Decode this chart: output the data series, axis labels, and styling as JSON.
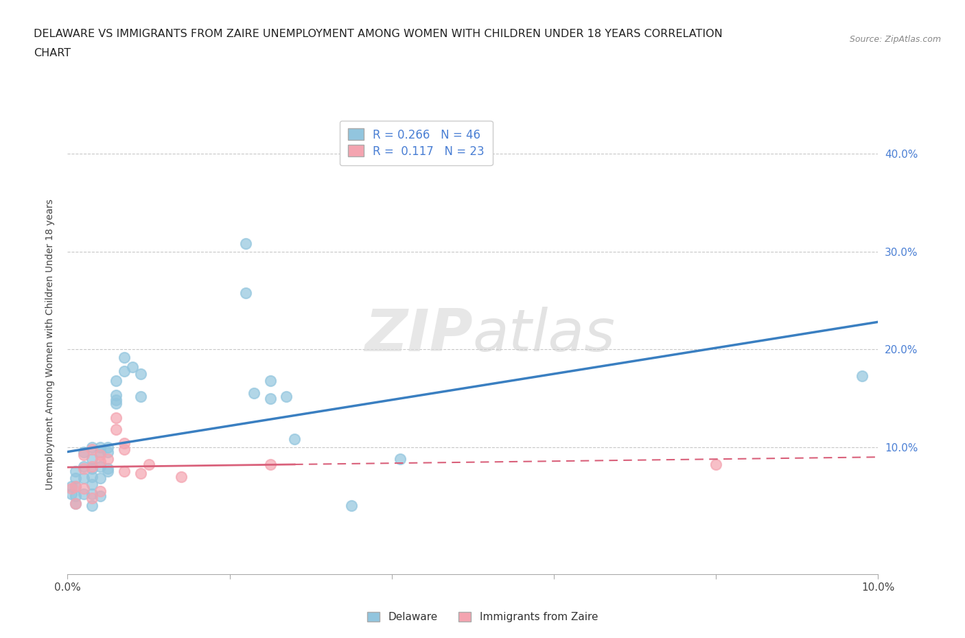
{
  "title_line1": "DELAWARE VS IMMIGRANTS FROM ZAIRE UNEMPLOYMENT AMONG WOMEN WITH CHILDREN UNDER 18 YEARS CORRELATION",
  "title_line2": "CHART",
  "source": "Source: ZipAtlas.com",
  "ylabel": "Unemployment Among Women with Children Under 18 years",
  "watermark": "ZIPatlas",
  "xlim": [
    0.0,
    0.1
  ],
  "ylim": [
    -0.03,
    0.44
  ],
  "delaware_R": 0.266,
  "delaware_N": 46,
  "zaire_R": 0.117,
  "zaire_N": 23,
  "delaware_color": "#92c5de",
  "zaire_color": "#f4a4b0",
  "delaware_line_color": "#3a7fc1",
  "zaire_line_color": "#d9607a",
  "grid_color": "#c8c8c8",
  "background_color": "#ffffff",
  "label_color_blue": "#4a7fd4",
  "delaware_x": [
    0.0005,
    0.0005,
    0.001,
    0.001,
    0.001,
    0.001,
    0.001,
    0.002,
    0.002,
    0.002,
    0.002,
    0.003,
    0.003,
    0.003,
    0.003,
    0.003,
    0.003,
    0.003,
    0.004,
    0.004,
    0.004,
    0.004,
    0.004,
    0.005,
    0.005,
    0.005,
    0.005,
    0.006,
    0.006,
    0.006,
    0.006,
    0.007,
    0.007,
    0.008,
    0.009,
    0.009,
    0.022,
    0.022,
    0.023,
    0.025,
    0.025,
    0.027,
    0.028,
    0.035,
    0.041,
    0.098
  ],
  "delaware_y": [
    0.06,
    0.052,
    0.075,
    0.068,
    0.06,
    0.05,
    0.042,
    0.095,
    0.08,
    0.068,
    0.052,
    0.1,
    0.088,
    0.078,
    0.07,
    0.062,
    0.052,
    0.04,
    0.1,
    0.095,
    0.08,
    0.068,
    0.05,
    0.1,
    0.095,
    0.078,
    0.075,
    0.168,
    0.153,
    0.148,
    0.145,
    0.192,
    0.178,
    0.182,
    0.175,
    0.152,
    0.308,
    0.258,
    0.155,
    0.168,
    0.15,
    0.152,
    0.108,
    0.04,
    0.088,
    0.173
  ],
  "zaire_x": [
    0.0005,
    0.001,
    0.001,
    0.002,
    0.002,
    0.002,
    0.003,
    0.003,
    0.003,
    0.004,
    0.004,
    0.004,
    0.005,
    0.006,
    0.006,
    0.007,
    0.007,
    0.007,
    0.009,
    0.01,
    0.014,
    0.025,
    0.08
  ],
  "zaire_y": [
    0.058,
    0.06,
    0.042,
    0.092,
    0.078,
    0.058,
    0.098,
    0.08,
    0.048,
    0.092,
    0.085,
    0.055,
    0.088,
    0.13,
    0.118,
    0.104,
    0.098,
    0.075,
    0.073,
    0.082,
    0.07,
    0.082,
    0.082
  ]
}
